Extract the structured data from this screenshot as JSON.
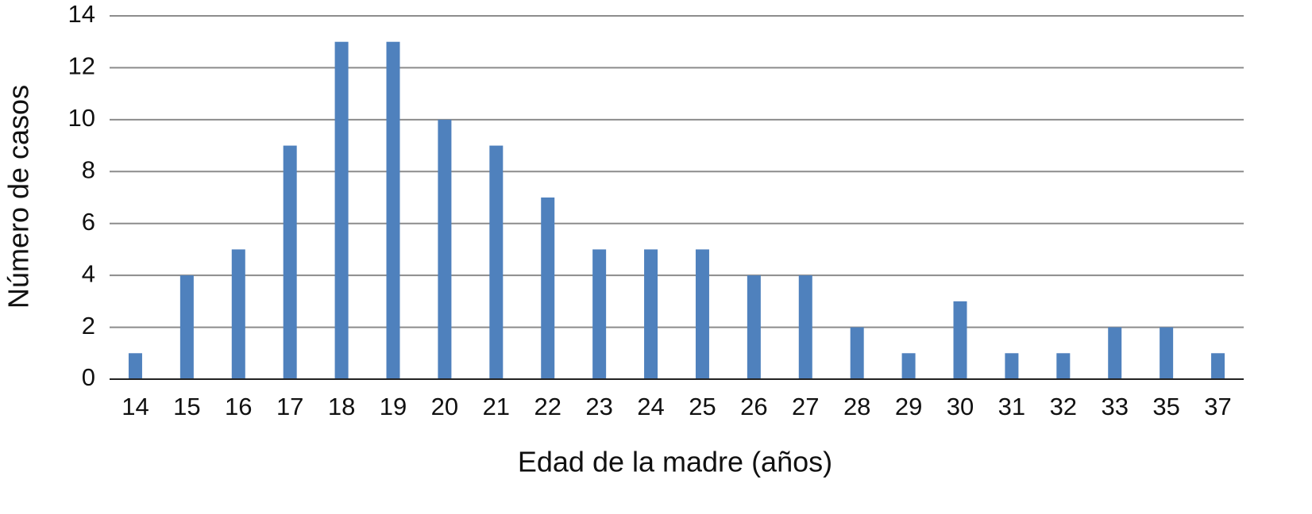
{
  "chart_data": {
    "type": "bar",
    "x_label": "Edad de la madre (años)",
    "y_label": "Número de casos",
    "categories": [
      "14",
      "15",
      "16",
      "17",
      "18",
      "19",
      "20",
      "21",
      "22",
      "23",
      "24",
      "25",
      "26",
      "27",
      "28",
      "29",
      "30",
      "31",
      "32",
      "33",
      "35",
      "37"
    ],
    "values": [
      1,
      4,
      5,
      9,
      13,
      13,
      10,
      9,
      7,
      5,
      5,
      5,
      4,
      4,
      2,
      1,
      3,
      1,
      1,
      2,
      2,
      1
    ],
    "color": "#4f81bd",
    "ylim": [
      0,
      14
    ],
    "yticks": [
      0,
      2,
      4,
      6,
      8,
      10,
      12,
      14
    ],
    "grid": true
  }
}
